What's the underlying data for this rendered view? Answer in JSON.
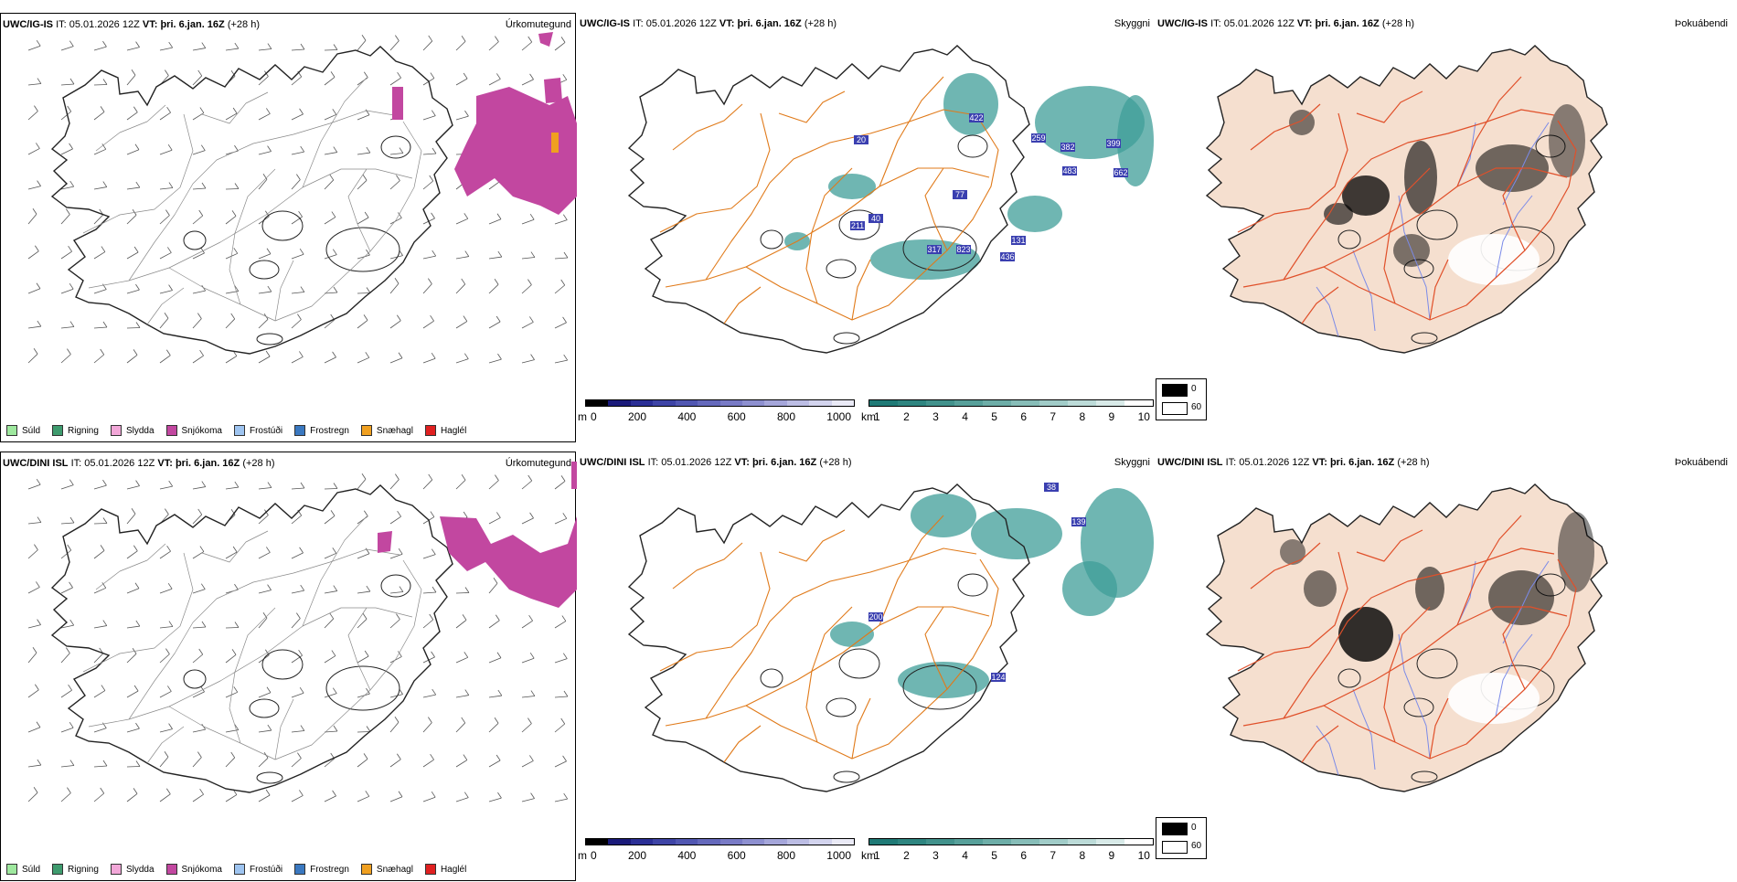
{
  "rows": [
    {
      "model": "UWC/IG-IS",
      "it_label": "IT:",
      "it_value": "05.01.2026 12Z",
      "vt_label": "VT:",
      "vt_value": "þri. 6.jan. 16Z",
      "lead": "(+28 h)",
      "precip_title": "Úrkomutegund",
      "visibility_title": "Skyggni",
      "fog_title": "Þokuábendi",
      "visibility_labels": [
        "422",
        "259",
        "382",
        "483",
        "399",
        "662",
        "20",
        "211",
        "40",
        "77",
        "317",
        "823",
        "436",
        "131"
      ]
    },
    {
      "model": "UWC/DINI ISL",
      "it_label": "IT:",
      "it_value": "05.01.2026 12Z",
      "vt_label": "VT:",
      "vt_value": "þri. 6.jan. 16Z",
      "lead": "(+28 h)",
      "precip_title": "Úrkomutegund",
      "visibility_title": "Skyggni",
      "fog_title": "Þokuábendi",
      "visibility_labels": [
        "38",
        "139",
        "200",
        "124"
      ]
    }
  ],
  "precip_legend": [
    {
      "label": "Súld",
      "color": "#9ee89e"
    },
    {
      "label": "Rigning",
      "color": "#3e9b6e"
    },
    {
      "label": "Slydda",
      "color": "#f2a7d8"
    },
    {
      "label": "Snjókoma",
      "color": "#c247a0"
    },
    {
      "label": "Frostúði",
      "color": "#9ec4f0"
    },
    {
      "label": "Frostregn",
      "color": "#3a78c0"
    },
    {
      "label": "Snæhagl",
      "color": "#f0a020"
    },
    {
      "label": "Haglél",
      "color": "#e02020"
    }
  ],
  "cloudbase_bar": {
    "unit": "m",
    "ticks": [
      "0",
      "200",
      "400",
      "600",
      "800",
      "1000"
    ],
    "colors": [
      "#000000",
      "#1a1a7a",
      "#2b2f96",
      "#3e44a6",
      "#5157b2",
      "#6569bc",
      "#797bc6",
      "#8e90d0",
      "#a5a6da",
      "#bcbde4",
      "#d3d4ee",
      "#eaeaf6"
    ]
  },
  "visibility_bar": {
    "unit": "km",
    "ticks": [
      "1",
      "2",
      "3",
      "4",
      "5",
      "6",
      "7",
      "8",
      "9",
      "10"
    ],
    "colors": [
      "#1f7a76",
      "#2e8580",
      "#42928c",
      "#57a09a",
      "#6eaea8",
      "#87bdb8",
      "#a1ccc8",
      "#bcdbd8",
      "#d8eae8",
      "#ffffff"
    ]
  },
  "fog_legend": [
    {
      "label": "0",
      "color": "#000000"
    },
    {
      "label": "60",
      "color": "#ffffff"
    }
  ],
  "colors": {
    "snow": "#c247a0",
    "roads": "#e07a1a",
    "fog_land": "#f5dfcf",
    "fog_roads": "#e0502a",
    "fog_rivers": "#7a8ae8",
    "vis_teal": "#3f9e98",
    "cloudbase_blue": "#3a3fb0"
  }
}
